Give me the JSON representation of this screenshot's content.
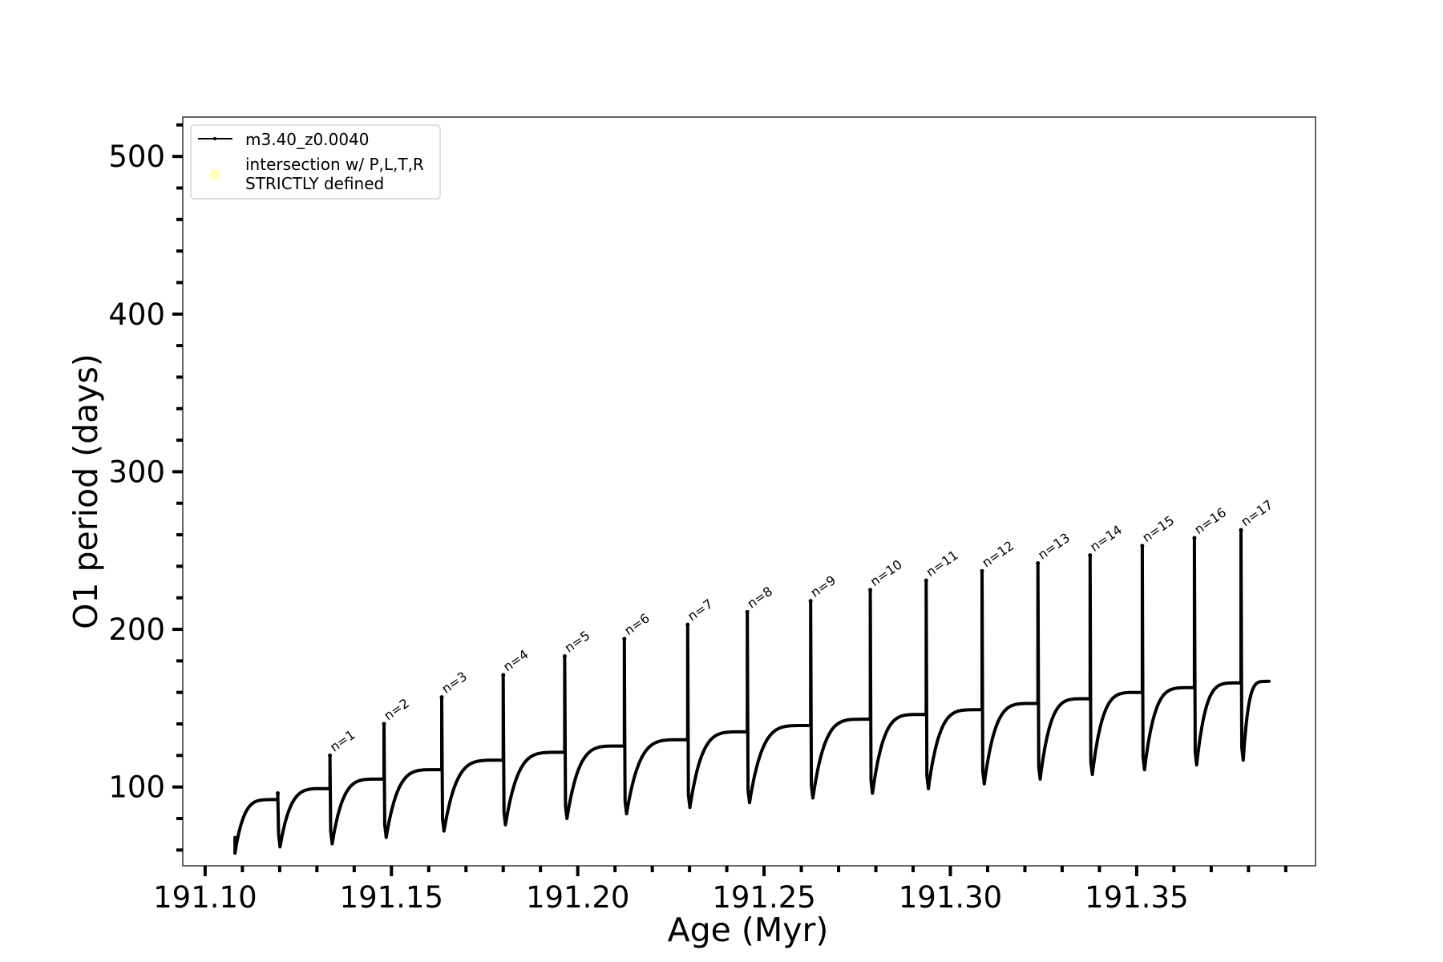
{
  "chart_data": {
    "type": "line",
    "xlabel": "Age (Myr)",
    "ylabel": "O1 period (days)",
    "xlim": [
      191.094,
      191.398
    ],
    "ylim": [
      50,
      525
    ],
    "x_ticks": [
      191.1,
      191.15,
      191.2,
      191.25,
      191.3,
      191.35
    ],
    "x_tick_labels": [
      "191.10",
      "191.15",
      "191.20",
      "191.25",
      "191.30",
      "191.35"
    ],
    "x_minor_step": 0.01,
    "y_ticks": [
      100,
      200,
      300,
      400,
      500
    ],
    "y_tick_labels": [
      "100",
      "200",
      "300",
      "400",
      "500"
    ],
    "y_minor_step": 20,
    "grid": false,
    "legend": {
      "placement": "upper-left",
      "entries": [
        {
          "label": "m3.40_z0.0040",
          "marker": "line-dot",
          "color": "#000000"
        },
        {
          "label_lines": [
            "intersection w/ P,L,T,R",
            "STRICTLY defined"
          ],
          "marker": "circle",
          "color": "#ffffc0"
        }
      ]
    },
    "series": [
      {
        "name": "m3.40_z0.0040",
        "color": "#000000",
        "start": {
          "x": 191.108,
          "y": 68
        },
        "first_dip": {
          "x": 191.108,
          "y": 58
        },
        "interpulse_cycles": [
          {
            "end_x": 191.1195,
            "end_y": 92
          },
          {
            "end_x": 191.1335,
            "end_y": 99
          },
          {
            "end_x": 191.148,
            "end_y": 105
          },
          {
            "end_x": 191.1635,
            "end_y": 111
          },
          {
            "end_x": 191.18,
            "end_y": 117
          },
          {
            "end_x": 191.1965,
            "end_y": 122
          },
          {
            "end_x": 191.2125,
            "end_y": 126
          },
          {
            "end_x": 191.2295,
            "end_y": 130
          },
          {
            "end_x": 191.2455,
            "end_y": 135
          },
          {
            "end_x": 191.2625,
            "end_y": 139
          },
          {
            "end_x": 191.2785,
            "end_y": 143
          },
          {
            "end_x": 191.2935,
            "end_y": 146
          },
          {
            "end_x": 191.3085,
            "end_y": 149
          },
          {
            "end_x": 191.3235,
            "end_y": 153
          },
          {
            "end_x": 191.3375,
            "end_y": 156
          },
          {
            "end_x": 191.3515,
            "end_y": 160
          },
          {
            "end_x": 191.3655,
            "end_y": 163
          },
          {
            "end_x": 191.378,
            "end_y": 166
          },
          {
            "end_x": 191.3855,
            "end_y": 167
          }
        ],
        "thermal_pulses": [
          {
            "label": "",
            "x": 191.1195,
            "peak": 96,
            "low": 62
          },
          {
            "label": "n=1",
            "x": 191.1335,
            "peak": 120,
            "low": 64
          },
          {
            "label": "n=2",
            "x": 191.148,
            "peak": 140,
            "low": 68
          },
          {
            "label": "n=3",
            "x": 191.1635,
            "peak": 157,
            "low": 72
          },
          {
            "label": "n=4",
            "x": 191.18,
            "peak": 171,
            "low": 76
          },
          {
            "label": "n=5",
            "x": 191.1965,
            "peak": 183,
            "low": 80
          },
          {
            "label": "n=6",
            "x": 191.2125,
            "peak": 194,
            "low": 83
          },
          {
            "label": "n=7",
            "x": 191.2295,
            "peak": 203,
            "low": 87
          },
          {
            "label": "n=8",
            "x": 191.2455,
            "peak": 211,
            "low": 90
          },
          {
            "label": "n=9",
            "x": 191.2625,
            "peak": 218,
            "low": 93
          },
          {
            "label": "n=10",
            "x": 191.2785,
            "peak": 225,
            "low": 96
          },
          {
            "label": "n=11",
            "x": 191.2935,
            "peak": 231,
            "low": 99
          },
          {
            "label": "n=12",
            "x": 191.3085,
            "peak": 237,
            "low": 102
          },
          {
            "label": "n=13",
            "x": 191.3235,
            "peak": 242,
            "low": 105
          },
          {
            "label": "n=14",
            "x": 191.3375,
            "peak": 247,
            "low": 108
          },
          {
            "label": "n=15",
            "x": 191.3515,
            "peak": 253,
            "low": 111
          },
          {
            "label": "n=16",
            "x": 191.3655,
            "peak": 258,
            "low": 114
          },
          {
            "label": "n=17",
            "x": 191.378,
            "peak": 263,
            "low": 117
          }
        ]
      }
    ]
  }
}
